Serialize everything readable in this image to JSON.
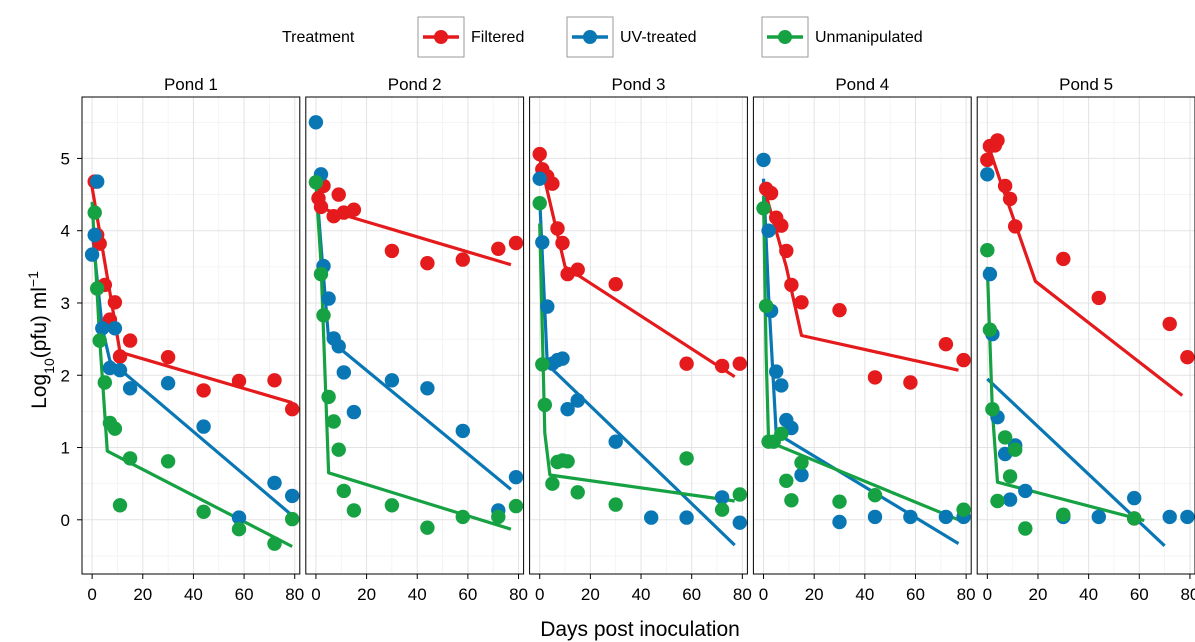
{
  "chart_data": {
    "type": "scatter",
    "xlabel": "Days post inoculation",
    "ylabel": "Log",
    "ylabel_sub": "10",
    "ylabel_rest": "(pfu) ml",
    "ylabel_sup": "−1",
    "legend_title": "Treatment",
    "legend_position": "top",
    "grid": true,
    "xlim": [
      -4,
      82
    ],
    "ylim": [
      -0.75,
      5.85
    ],
    "x_ticks": [
      0,
      20,
      40,
      60,
      80
    ],
    "x_tick_labels": [
      "0",
      "20",
      "40",
      "60",
      "80"
    ],
    "y_ticks": [
      0,
      1,
      2,
      3,
      4,
      5
    ],
    "y_tick_labels": [
      "0",
      "1",
      "2",
      "3",
      "4",
      "5"
    ],
    "colors": {
      "Filtered": "#e41a1c",
      "UV-treated": "#0a77b5",
      "Unmanipulated": "#16a142"
    },
    "series_names": [
      "Filtered",
      "UV-treated",
      "Unmanipulated"
    ],
    "panels": [
      {
        "title": "Pond 1",
        "points": {
          "Filtered": [
            [
              1,
              4.68
            ],
            [
              2,
              3.94
            ],
            [
              3,
              3.82
            ],
            [
              5,
              3.25
            ],
            [
              7,
              2.77
            ],
            [
              9,
              3.01
            ],
            [
              11,
              2.26
            ],
            [
              15,
              2.48
            ],
            [
              30,
              2.25
            ],
            [
              44,
              1.79
            ],
            [
              58,
              1.92
            ],
            [
              72,
              1.93
            ],
            [
              79,
              1.53
            ]
          ],
          "UV-treated": [
            [
              0,
              3.67
            ],
            [
              1,
              3.94
            ],
            [
              2,
              4.68
            ],
            [
              4,
              2.65
            ],
            [
              7,
              2.1
            ],
            [
              9,
              2.65
            ],
            [
              11,
              2.07
            ],
            [
              15,
              1.82
            ],
            [
              30,
              1.89
            ],
            [
              44,
              1.29
            ],
            [
              58,
              0.03
            ],
            [
              72,
              0.51
            ],
            [
              79,
              0.33
            ]
          ],
          "Unmanipulated": [
            [
              1,
              4.25
            ],
            [
              2,
              3.2
            ],
            [
              3,
              2.48
            ],
            [
              5,
              1.9
            ],
            [
              7,
              1.34
            ],
            [
              9,
              1.26
            ],
            [
              11,
              0.2
            ],
            [
              15,
              0.85
            ],
            [
              30,
              0.81
            ],
            [
              44,
              0.11
            ],
            [
              58,
              -0.13
            ],
            [
              72,
              -0.33
            ],
            [
              79,
              0.01
            ]
          ]
        },
        "fits": {
          "Filtered": [
            [
              0,
              4.6
            ],
            [
              11,
              2.32
            ],
            [
              79,
              1.62
            ]
          ],
          "UV-treated": [
            [
              0,
              4.0
            ],
            [
              4,
              2.65
            ],
            [
              7,
              2.2
            ],
            [
              79,
              0.06
            ]
          ],
          "Unmanipulated": [
            [
              0,
              4.4
            ],
            [
              3,
              2.5
            ],
            [
              6,
              0.95
            ],
            [
              79,
              -0.37
            ]
          ]
        }
      },
      {
        "title": "Pond 2",
        "points": {
          "Filtered": [
            [
              1,
              4.45
            ],
            [
              2,
              4.33
            ],
            [
              3,
              4.62
            ],
            [
              7,
              4.2
            ],
            [
              9,
              4.5
            ],
            [
              11,
              4.25
            ],
            [
              15,
              4.29
            ],
            [
              30,
              3.72
            ],
            [
              44,
              3.55
            ],
            [
              58,
              3.6
            ],
            [
              72,
              3.75
            ],
            [
              79,
              3.83
            ]
          ],
          "UV-treated": [
            [
              0,
              5.5
            ],
            [
              2,
              4.78
            ],
            [
              3,
              3.51
            ],
            [
              5,
              3.06
            ],
            [
              7,
              2.51
            ],
            [
              9,
              2.4
            ],
            [
              11,
              2.04
            ],
            [
              15,
              1.49
            ],
            [
              30,
              1.93
            ],
            [
              44,
              1.82
            ],
            [
              58,
              1.23
            ],
            [
              72,
              0.13
            ],
            [
              79,
              0.59
            ]
          ],
          "Unmanipulated": [
            [
              0,
              4.67
            ],
            [
              2,
              3.4
            ],
            [
              3,
              2.83
            ],
            [
              5,
              1.7
            ],
            [
              7,
              1.36
            ],
            [
              9,
              0.97
            ],
            [
              11,
              0.4
            ],
            [
              15,
              0.13
            ],
            [
              30,
              0.2
            ],
            [
              44,
              -0.11
            ],
            [
              58,
              0.04
            ],
            [
              72,
              0.04
            ],
            [
              79,
              0.19
            ]
          ]
        },
        "fits": {
          "Filtered": [
            [
              0,
              4.62
            ],
            [
              3,
              4.3
            ],
            [
              77,
              3.53
            ]
          ],
          "UV-treated": [
            [
              0,
              4.7
            ],
            [
              2,
              3.8
            ],
            [
              5,
              2.5
            ],
            [
              77,
              0.42
            ]
          ],
          "Unmanipulated": [
            [
              0,
              4.65
            ],
            [
              2,
              3.55
            ],
            [
              5,
              0.65
            ],
            [
              77,
              -0.13
            ]
          ]
        }
      },
      {
        "title": "Pond 3",
        "points": {
          "Filtered": [
            [
              0,
              5.06
            ],
            [
              1,
              4.85
            ],
            [
              3,
              4.75
            ],
            [
              5,
              4.65
            ],
            [
              7,
              4.03
            ],
            [
              9,
              3.83
            ],
            [
              11,
              3.4
            ],
            [
              15,
              3.46
            ],
            [
              30,
              3.26
            ],
            [
              58,
              2.16
            ],
            [
              72,
              2.13
            ],
            [
              79,
              2.16
            ]
          ],
          "UV-treated": [
            [
              0,
              4.72
            ],
            [
              1,
              3.84
            ],
            [
              3,
              2.95
            ],
            [
              5,
              2.16
            ],
            [
              7,
              2.21
            ],
            [
              9,
              2.23
            ],
            [
              11,
              1.53
            ],
            [
              15,
              1.65
            ],
            [
              30,
              1.08
            ],
            [
              44,
              0.03
            ],
            [
              58,
              0.03
            ],
            [
              72,
              0.31
            ],
            [
              79,
              -0.04
            ]
          ],
          "Unmanipulated": [
            [
              0,
              4.38
            ],
            [
              1,
              2.15
            ],
            [
              2,
              1.59
            ],
            [
              5,
              0.5
            ],
            [
              7,
              0.8
            ],
            [
              9,
              0.82
            ],
            [
              11,
              0.81
            ],
            [
              15,
              0.38
            ],
            [
              30,
              0.21
            ],
            [
              58,
              0.85
            ],
            [
              72,
              0.14
            ],
            [
              79,
              0.35
            ]
          ]
        },
        "fits": {
          "Filtered": [
            [
              0,
              5.0
            ],
            [
              10,
              3.5
            ],
            [
              77,
              1.98
            ]
          ],
          "UV-treated": [
            [
              0,
              4.45
            ],
            [
              3,
              2.15
            ],
            [
              77,
              -0.35
            ]
          ],
          "Unmanipulated": [
            [
              0,
              4.1
            ],
            [
              2,
              1.2
            ],
            [
              4,
              0.62
            ],
            [
              77,
              0.26
            ]
          ]
        }
      },
      {
        "title": "Pond 4",
        "points": {
          "Filtered": [
            [
              1,
              4.58
            ],
            [
              3,
              4.52
            ],
            [
              5,
              4.18
            ],
            [
              7,
              4.07
            ],
            [
              9,
              3.72
            ],
            [
              11,
              3.25
            ],
            [
              15,
              3.01
            ],
            [
              30,
              2.9
            ],
            [
              44,
              1.97
            ],
            [
              58,
              1.9
            ],
            [
              72,
              2.43
            ],
            [
              79,
              2.21
            ]
          ],
          "UV-treated": [
            [
              0,
              4.98
            ],
            [
              2,
              4.0
            ],
            [
              3,
              2.89
            ],
            [
              5,
              2.05
            ],
            [
              7,
              1.86
            ],
            [
              9,
              1.38
            ],
            [
              11,
              1.27
            ],
            [
              15,
              0.62
            ],
            [
              30,
              -0.03
            ],
            [
              44,
              0.04
            ],
            [
              58,
              0.04
            ],
            [
              72,
              0.04
            ],
            [
              79,
              0.04
            ]
          ],
          "Unmanipulated": [
            [
              0,
              4.31
            ],
            [
              1,
              2.96
            ],
            [
              2,
              1.08
            ],
            [
              4,
              1.08
            ],
            [
              7,
              1.19
            ],
            [
              9,
              0.54
            ],
            [
              11,
              0.27
            ],
            [
              15,
              0.79
            ],
            [
              30,
              0.25
            ],
            [
              44,
              0.34
            ],
            [
              79,
              0.14
            ]
          ]
        },
        "fits": {
          "Filtered": [
            [
              0,
              4.62
            ],
            [
              9,
              3.5
            ],
            [
              15,
              2.55
            ],
            [
              77,
              2.07
            ]
          ],
          "UV-treated": [
            [
              0,
              4.72
            ],
            [
              2,
              3.1
            ],
            [
              5,
              1.2
            ],
            [
              77,
              -0.33
            ]
          ],
          "Unmanipulated": [
            [
              0,
              4.48
            ],
            [
              1,
              2.3
            ],
            [
              2,
              1.08
            ],
            [
              77,
              0.0
            ]
          ]
        }
      },
      {
        "title": "Pond 5",
        "points": {
          "Filtered": [
            [
              0,
              4.98
            ],
            [
              1,
              5.17
            ],
            [
              3,
              5.18
            ],
            [
              4,
              5.25
            ],
            [
              7,
              4.62
            ],
            [
              9,
              4.44
            ],
            [
              11,
              4.06
            ],
            [
              30,
              3.61
            ],
            [
              44,
              3.07
            ],
            [
              58,
              0.02
            ],
            [
              72,
              2.71
            ],
            [
              79,
              2.25
            ]
          ],
          "UV-treated": [
            [
              0,
              4.78
            ],
            [
              1,
              3.4
            ],
            [
              2,
              2.57
            ],
            [
              4,
              1.42
            ],
            [
              7,
              0.91
            ],
            [
              9,
              0.28
            ],
            [
              11,
              1.03
            ],
            [
              15,
              0.4
            ],
            [
              30,
              0.04
            ],
            [
              44,
              0.04
            ],
            [
              58,
              0.3
            ],
            [
              72,
              0.04
            ],
            [
              79,
              0.04
            ]
          ],
          "Unmanipulated": [
            [
              0,
              3.73
            ],
            [
              1,
              2.63
            ],
            [
              2,
              1.53
            ],
            [
              4,
              0.26
            ],
            [
              7,
              1.14
            ],
            [
              9,
              0.6
            ],
            [
              11,
              0.97
            ],
            [
              15,
              -0.12
            ],
            [
              30,
              0.07
            ],
            [
              58,
              0.02
            ]
          ]
        },
        "fits": {
          "Filtered": [
            [
              0,
              5.22
            ],
            [
              5,
              4.7
            ],
            [
              19,
              3.3
            ],
            [
              77,
              1.72
            ]
          ],
          "UV-treated": [
            [
              0,
              1.95
            ],
            [
              70,
              -0.36
            ]
          ],
          "Unmanipulated": [
            [
              0,
              3.5
            ],
            [
              2,
              1.5
            ],
            [
              4,
              0.52
            ],
            [
              62,
              -0.01
            ]
          ]
        }
      }
    ]
  }
}
